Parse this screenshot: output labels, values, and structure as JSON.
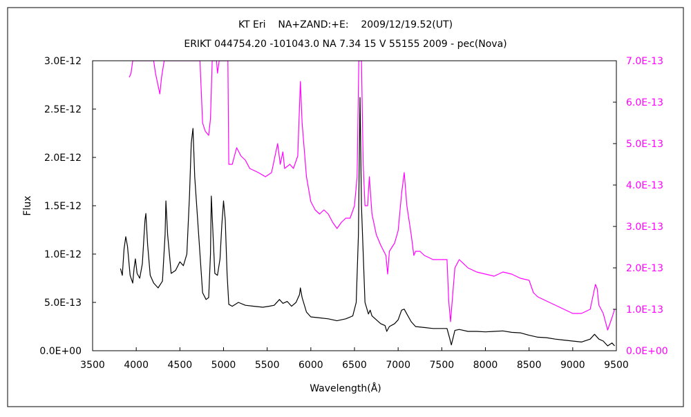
{
  "chart_data": {
    "type": "line",
    "title": "KT Eri    NA+ZAND:+E:    2009/12/19.52(UT)",
    "subtitle": "ERIKT 044754.20 -101043.0 NA 7.34 15 V 55155 2009 - pec(Nova)",
    "xlabel": "Wavelength(Å)",
    "ylabel": "Flux",
    "xlim": [
      3500,
      9500
    ],
    "ylim": [
      0,
      3e-12
    ],
    "y2lim": [
      0,
      7e-13
    ],
    "grid": false,
    "legend": "none",
    "x_ticks": [
      "3500",
      "4000",
      "4500",
      "5000",
      "5500",
      "6000",
      "6500",
      "7000",
      "7500",
      "8000",
      "8500",
      "9000",
      "9500"
    ],
    "y_ticks": [
      "0.0E+00",
      "5.0E-13",
      "1.0E-12",
      "1.5E-12",
      "2.0E-12",
      "2.5E-12",
      "3.0E-12"
    ],
    "y2_ticks": [
      "0.0E+00",
      "1.0E-13",
      "2.0E-13",
      "3.0E-13",
      "4.0E-13",
      "5.0E-13",
      "6.0E-13",
      "7.0E-13"
    ],
    "series": [
      {
        "axis": "left",
        "color": "#000000",
        "points": [
          [
            3820,
            8.5e-13
          ],
          [
            3840,
            7.8e-13
          ],
          [
            3860,
            1.05e-12
          ],
          [
            3880,
            1.18e-12
          ],
          [
            3900,
            1.08e-12
          ],
          [
            3930,
            7.8e-13
          ],
          [
            3960,
            7e-13
          ],
          [
            3975,
            8.5e-13
          ],
          [
            3990,
            9.5e-13
          ],
          [
            4010,
            8e-13
          ],
          [
            4040,
            7.5e-13
          ],
          [
            4070,
            9e-13
          ],
          [
            4100,
            1.35e-12
          ],
          [
            4110,
            1.42e-12
          ],
          [
            4130,
            1.1e-12
          ],
          [
            4160,
            7.8e-13
          ],
          [
            4200,
            7e-13
          ],
          [
            4250,
            6.5e-13
          ],
          [
            4300,
            7.2e-13
          ],
          [
            4330,
            1.2e-12
          ],
          [
            4340,
            1.55e-12
          ],
          [
            4360,
            1.2e-12
          ],
          [
            4400,
            8e-13
          ],
          [
            4450,
            8.3e-13
          ],
          [
            4500,
            9.2e-13
          ],
          [
            4540,
            8.8e-13
          ],
          [
            4580,
            1e-12
          ],
          [
            4610,
            1.6e-12
          ],
          [
            4630,
            2.15e-12
          ],
          [
            4650,
            2.3e-12
          ],
          [
            4670,
            1.8e-12
          ],
          [
            4700,
            1.4e-12
          ],
          [
            4730,
            1e-12
          ],
          [
            4760,
            6e-13
          ],
          [
            4800,
            5.3e-13
          ],
          [
            4830,
            5.5e-13
          ],
          [
            4850,
            1e-12
          ],
          [
            4860,
            1.6e-12
          ],
          [
            4880,
            1.2e-12
          ],
          [
            4900,
            8e-13
          ],
          [
            4930,
            7.8e-13
          ],
          [
            4960,
            9.5e-13
          ],
          [
            4980,
            1.3e-12
          ],
          [
            5000,
            1.55e-12
          ],
          [
            5020,
            1.35e-12
          ],
          [
            5040,
            8e-13
          ],
          [
            5060,
            4.8e-13
          ],
          [
            5100,
            4.6e-13
          ],
          [
            5170,
            5e-13
          ],
          [
            5250,
            4.7e-13
          ],
          [
            5350,
            4.6e-13
          ],
          [
            5450,
            4.5e-13
          ],
          [
            5520,
            4.6e-13
          ],
          [
            5580,
            4.7e-13
          ],
          [
            5640,
            5.3e-13
          ],
          [
            5680,
            4.9e-13
          ],
          [
            5730,
            5.1e-13
          ],
          [
            5780,
            4.6e-13
          ],
          [
            5830,
            5e-13
          ],
          [
            5870,
            5.8e-13
          ],
          [
            5880,
            6.5e-13
          ],
          [
            5900,
            5.5e-13
          ],
          [
            5950,
            4e-13
          ],
          [
            6000,
            3.5e-13
          ],
          [
            6100,
            3.4e-13
          ],
          [
            6200,
            3.3e-13
          ],
          [
            6300,
            3.1e-13
          ],
          [
            6400,
            3.3e-13
          ],
          [
            6480,
            3.6e-13
          ],
          [
            6520,
            5e-13
          ],
          [
            6545,
            1.2e-12
          ],
          [
            6563,
            2.62e-12
          ],
          [
            6580,
            1.5e-12
          ],
          [
            6620,
            5e-13
          ],
          [
            6660,
            3.8e-13
          ],
          [
            6680,
            4.2e-13
          ],
          [
            6700,
            3.6e-13
          ],
          [
            6800,
            2.8e-13
          ],
          [
            6850,
            2.6e-13
          ],
          [
            6870,
            2e-13
          ],
          [
            6900,
            2.5e-13
          ],
          [
            6960,
            2.8e-13
          ],
          [
            7000,
            3.2e-13
          ],
          [
            7040,
            4.2e-13
          ],
          [
            7070,
            4.3e-13
          ],
          [
            7100,
            3.8e-13
          ],
          [
            7150,
            3e-13
          ],
          [
            7200,
            2.5e-13
          ],
          [
            7300,
            2.4e-13
          ],
          [
            7400,
            2.3e-13
          ],
          [
            7500,
            2.3e-13
          ],
          [
            7560,
            2.3e-13
          ],
          [
            7590,
            1.3e-13
          ],
          [
            7610,
            6e-14
          ],
          [
            7650,
            2.1e-13
          ],
          [
            7700,
            2.2e-13
          ],
          [
            7800,
            2e-13
          ],
          [
            7900,
            2e-13
          ],
          [
            8000,
            1.95e-13
          ],
          [
            8100,
            2e-13
          ],
          [
            8200,
            2.05e-13
          ],
          [
            8300,
            1.9e-13
          ],
          [
            8400,
            1.85e-13
          ],
          [
            8500,
            1.6e-13
          ],
          [
            8600,
            1.4e-13
          ],
          [
            8700,
            1.35e-13
          ],
          [
            8800,
            1.2e-13
          ],
          [
            8900,
            1.1e-13
          ],
          [
            9000,
            1e-13
          ],
          [
            9100,
            9e-14
          ],
          [
            9200,
            1.2e-13
          ],
          [
            9250,
            1.7e-13
          ],
          [
            9300,
            1.2e-13
          ],
          [
            9350,
            1e-13
          ],
          [
            9400,
            5e-14
          ],
          [
            9450,
            8e-14
          ],
          [
            9480,
            5e-14
          ]
        ]
      },
      {
        "axis": "right",
        "color": "#ff00ff",
        "points": [
          [
            3920,
            6.6e-13
          ],
          [
            3940,
            6.7e-13
          ],
          [
            3960,
            7e-13
          ],
          [
            4200,
            7e-13
          ],
          [
            4220,
            6.7e-13
          ],
          [
            4250,
            6.4e-13
          ],
          [
            4270,
            6.2e-13
          ],
          [
            4290,
            6.6e-13
          ],
          [
            4320,
            7e-13
          ],
          [
            4730,
            7e-13
          ],
          [
            4760,
            5.5e-13
          ],
          [
            4790,
            5.3e-13
          ],
          [
            4830,
            5.2e-13
          ],
          [
            4850,
            5.6e-13
          ],
          [
            4870,
            7e-13
          ],
          [
            4920,
            7e-13
          ],
          [
            4930,
            6.7e-13
          ],
          [
            4950,
            7e-13
          ],
          [
            5050,
            7e-13
          ],
          [
            5060,
            4.5e-13
          ],
          [
            5100,
            4.5e-13
          ],
          [
            5150,
            4.9e-13
          ],
          [
            5200,
            4.7e-13
          ],
          [
            5250,
            4.6e-13
          ],
          [
            5300,
            4.4e-13
          ],
          [
            5400,
            4.3e-13
          ],
          [
            5480,
            4.2e-13
          ],
          [
            5550,
            4.3e-13
          ],
          [
            5590,
            4.7e-13
          ],
          [
            5620,
            5e-13
          ],
          [
            5650,
            4.5e-13
          ],
          [
            5680,
            4.8e-13
          ],
          [
            5700,
            4.4e-13
          ],
          [
            5760,
            4.5e-13
          ],
          [
            5800,
            4.4e-13
          ],
          [
            5850,
            4.7e-13
          ],
          [
            5880,
            6.5e-13
          ],
          [
            5900,
            5.5e-13
          ],
          [
            5950,
            4.2e-13
          ],
          [
            6000,
            3.6e-13
          ],
          [
            6050,
            3.4e-13
          ],
          [
            6100,
            3.3e-13
          ],
          [
            6150,
            3.4e-13
          ],
          [
            6200,
            3.3e-13
          ],
          [
            6250,
            3.1e-13
          ],
          [
            6300,
            2.95e-13
          ],
          [
            6350,
            3.1e-13
          ],
          [
            6400,
            3.2e-13
          ],
          [
            6450,
            3.2e-13
          ],
          [
            6500,
            3.5e-13
          ],
          [
            6530,
            4.2e-13
          ],
          [
            6550,
            7e-13
          ],
          [
            6580,
            7e-13
          ],
          [
            6600,
            4.5e-13
          ],
          [
            6620,
            3.5e-13
          ],
          [
            6650,
            3.5e-13
          ],
          [
            6670,
            4.2e-13
          ],
          [
            6700,
            3.3e-13
          ],
          [
            6750,
            2.8e-13
          ],
          [
            6800,
            2.55e-13
          ],
          [
            6860,
            2.3e-13
          ],
          [
            6880,
            1.85e-13
          ],
          [
            6900,
            2.4e-13
          ],
          [
            6960,
            2.6e-13
          ],
          [
            7000,
            2.9e-13
          ],
          [
            7040,
            3.8e-13
          ],
          [
            7070,
            4.3e-13
          ],
          [
            7100,
            3.5e-13
          ],
          [
            7150,
            2.8e-13
          ],
          [
            7180,
            2.3e-13
          ],
          [
            7200,
            2.4e-13
          ],
          [
            7250,
            2.4e-13
          ],
          [
            7300,
            2.3e-13
          ],
          [
            7400,
            2.2e-13
          ],
          [
            7500,
            2.2e-13
          ],
          [
            7560,
            2.2e-13
          ],
          [
            7580,
            1.2e-13
          ],
          [
            7600,
            7e-14
          ],
          [
            7650,
            2e-13
          ],
          [
            7700,
            2.2e-13
          ],
          [
            7800,
            2e-13
          ],
          [
            7900,
            1.9e-13
          ],
          [
            8000,
            1.85e-13
          ],
          [
            8100,
            1.8e-13
          ],
          [
            8200,
            1.9e-13
          ],
          [
            8300,
            1.85e-13
          ],
          [
            8400,
            1.75e-13
          ],
          [
            8500,
            1.7e-13
          ],
          [
            8550,
            1.4e-13
          ],
          [
            8600,
            1.3e-13
          ],
          [
            8700,
            1.2e-13
          ],
          [
            8800,
            1.1e-13
          ],
          [
            8900,
            1e-13
          ],
          [
            9000,
            9e-14
          ],
          [
            9100,
            9e-14
          ],
          [
            9200,
            1e-13
          ],
          [
            9260,
            1.6e-13
          ],
          [
            9280,
            1.5e-13
          ],
          [
            9300,
            1.1e-13
          ],
          [
            9350,
            9e-14
          ],
          [
            9400,
            5e-14
          ],
          [
            9450,
            8e-14
          ],
          [
            9480,
            1e-13
          ]
        ]
      }
    ]
  }
}
